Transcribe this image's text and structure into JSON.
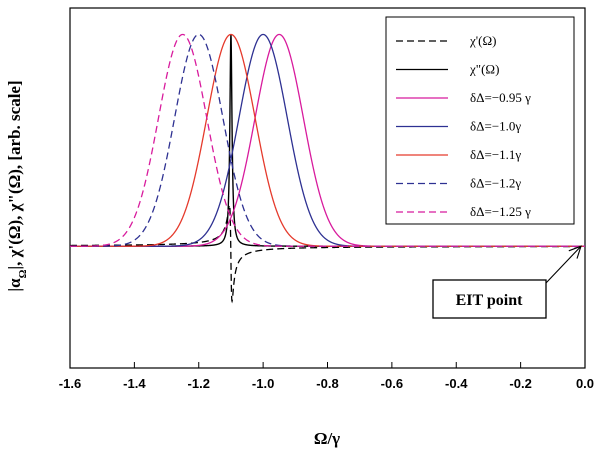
{
  "chart_data": {
    "type": "line",
    "xlabel": "Ω/γ",
    "ylabel": "|α_Ω|, χ'(Ω), χ\"(Ω), [arb. scale]",
    "ylabel_parts": {
      "a": "|α",
      "sub": "Ω",
      "b": "|, χ'(Ω), χ\"(Ω), [arb. scale]"
    },
    "xlim": [
      -1.6,
      0.0
    ],
    "ylim": [
      -1.15,
      2.25
    ],
    "x_ticks": [
      "-1.6",
      "-1.4",
      "-1.2",
      "-1.0",
      "-0.8",
      "-0.6",
      "-0.4",
      "-0.2",
      "0.0"
    ],
    "x_tick_values": [
      -1.6,
      -1.4,
      -1.2,
      -1.0,
      -0.8,
      -0.6,
      -0.4,
      -0.2,
      0.0
    ],
    "legend_position": "top-right",
    "grid": false,
    "resonance": {
      "center": -1.1,
      "width": 0.004
    },
    "series": [
      {
        "name": "χ'(Ω)",
        "kind": "dispersion",
        "color": "#000000",
        "dash": "dashed",
        "amplitude": 0.9,
        "offset": -0.13
      },
      {
        "name": "χ\"(Ω)",
        "kind": "absorption",
        "color": "#000000",
        "dash": "solid",
        "amplitude": 2.0
      },
      {
        "name": "δΔ=−0.95 γ",
        "kind": "gaussian",
        "color": "#d81b9d",
        "dash": "solid",
        "center": -0.95,
        "sigma": 0.075,
        "amplitude": 2.0
      },
      {
        "name": "δΔ=−1.0γ",
        "kind": "gaussian",
        "color": "#2e3192",
        "dash": "solid",
        "center": -1.0,
        "sigma": 0.075,
        "amplitude": 2.0
      },
      {
        "name": "δΔ=−1.1γ",
        "kind": "gaussian",
        "color": "#e53a2c",
        "dash": "solid",
        "center": -1.1,
        "sigma": 0.075,
        "amplitude": 2.0
      },
      {
        "name": "δΔ=−1.2γ",
        "kind": "gaussian",
        "color": "#2e3192",
        "dash": "dashed",
        "center": -1.2,
        "sigma": 0.075,
        "amplitude": 2.0
      },
      {
        "name": "δΔ=−1.25 γ",
        "kind": "gaussian",
        "color": "#d81b9d",
        "dash": "dashed",
        "center": -1.25,
        "sigma": 0.075,
        "amplitude": 2.0
      }
    ],
    "annotation": {
      "text": "EIT point",
      "points_to_x": 0.0,
      "points_to_y": 0.0
    }
  }
}
